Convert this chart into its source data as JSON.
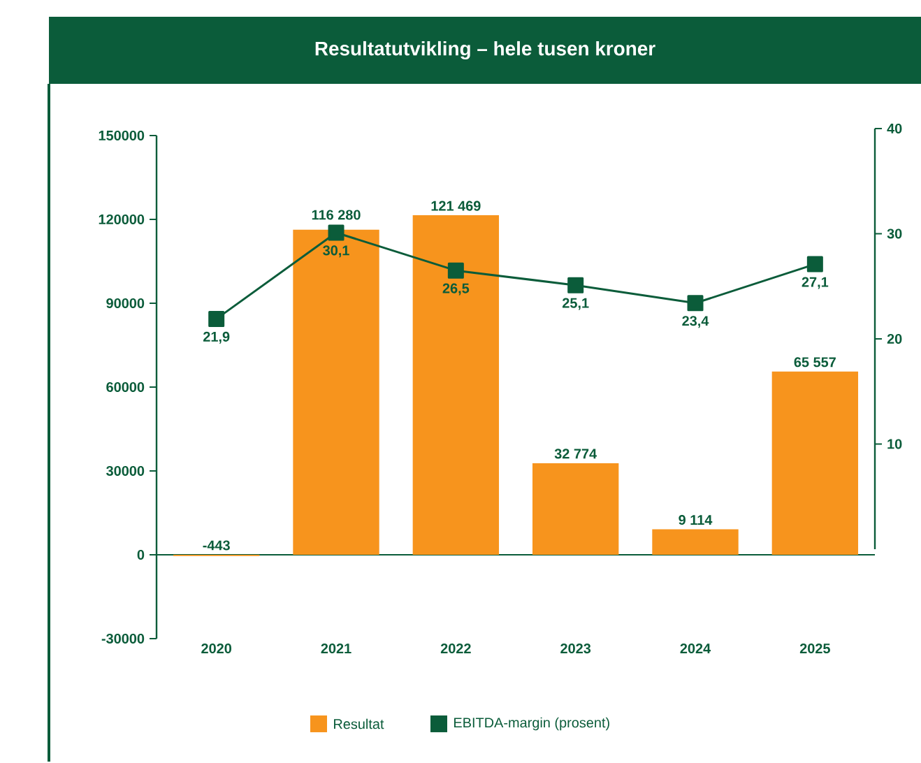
{
  "chart_data": {
    "type": "bar",
    "title": "Resultatutvikling – hele tusen kroner",
    "categories": [
      "2020",
      "2021",
      "2022",
      "2023",
      "2024",
      "2025"
    ],
    "series": [
      {
        "name": "Resultat",
        "color": "#f7941d",
        "values": [
          -443,
          116280,
          121469,
          32774,
          9114,
          65557
        ],
        "value_labels": [
          "-443",
          "116 280",
          "121 469",
          "32 774",
          "9 114",
          "65 557"
        ]
      },
      {
        "name": "EBITDA-margin (prosent)",
        "type": "line",
        "axis": "y2",
        "color": "#0b5c3a",
        "values": [
          21.9,
          30.1,
          26.5,
          25.1,
          23.4,
          27.1
        ],
        "value_labels": [
          "21,9",
          "30,1",
          "26,5",
          "25,1",
          "23,4",
          "27,1"
        ]
      }
    ],
    "marker": "square",
    "ylim": [
      -30000,
      150000
    ],
    "yticks": [
      -30000,
      0,
      30000,
      60000,
      90000,
      120000,
      150000
    ],
    "y2lim": [
      0,
      40
    ],
    "y2ticks": [
      10,
      20,
      30,
      40
    ],
    "legend": "bottom"
  }
}
